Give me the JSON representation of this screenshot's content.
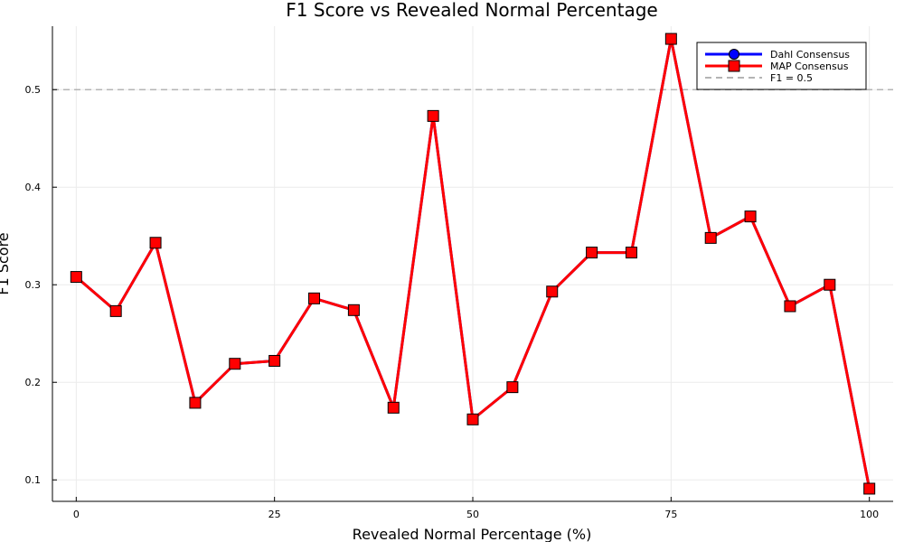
{
  "chart_data": {
    "type": "line",
    "title": "F1 Score vs Revealed Normal Percentage",
    "xlabel": "Revealed Normal Percentage (%)",
    "ylabel": "F1 Score",
    "xlim": [
      -3,
      103
    ],
    "ylim": [
      0.078,
      0.565
    ],
    "x_ticks": [
      0,
      25,
      50,
      75,
      100
    ],
    "y_ticks": [
      0.1,
      0.2,
      0.3,
      0.4,
      0.5
    ],
    "grid": true,
    "legend_position": "top-right",
    "x": [
      0,
      5,
      10,
      15,
      20,
      25,
      30,
      35,
      40,
      45,
      50,
      55,
      60,
      65,
      70,
      75,
      80,
      85,
      90,
      95,
      100
    ],
    "series": [
      {
        "name": "Dahl Consensus",
        "color": "#0000ff",
        "marker": "circle",
        "values": [
          0.308,
          0.273,
          0.343,
          0.179,
          0.219,
          0.222,
          0.286,
          0.274,
          0.174,
          0.473,
          0.162,
          0.195,
          0.293,
          0.333,
          0.333,
          0.552,
          0.348,
          0.37,
          0.278,
          0.3,
          0.091
        ]
      },
      {
        "name": "MAP Consensus",
        "color": "#ff0000",
        "marker": "square",
        "values": [
          0.308,
          0.273,
          0.343,
          0.179,
          0.219,
          0.222,
          0.286,
          0.274,
          0.174,
          0.473,
          0.162,
          0.195,
          0.293,
          0.333,
          0.333,
          0.552,
          0.348,
          0.37,
          0.278,
          0.3,
          0.091
        ]
      }
    ],
    "reference_line": {
      "name": "F1 = 0.5",
      "value": 0.5,
      "color": "#c0c0c0",
      "style": "dashed"
    }
  }
}
